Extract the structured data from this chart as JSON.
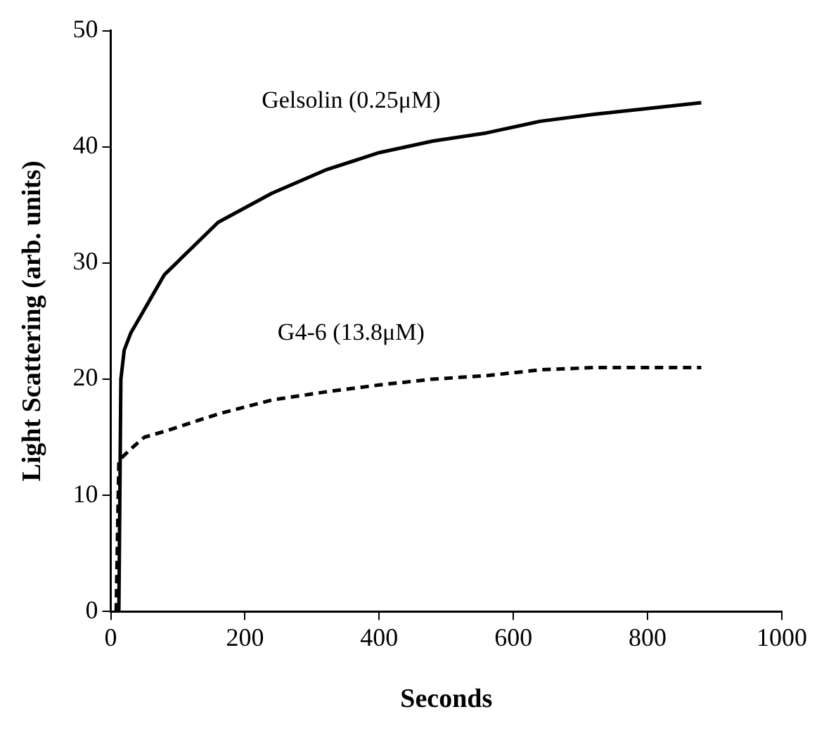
{
  "chart_data": {
    "type": "line",
    "xlabel": "Seconds",
    "ylabel": "Light Scattering (arb. units)",
    "xlim": [
      0,
      1000
    ],
    "xticks": [
      0,
      200,
      400,
      600,
      800,
      1000
    ],
    "ylim": [
      0,
      50
    ],
    "yticks": [
      0,
      10,
      20,
      30,
      40,
      50
    ],
    "grid": false,
    "legend": false,
    "marker": "none",
    "series": [
      {
        "name": "Gelsolin (0.25μM)",
        "color": "#000000",
        "line_style": "solid",
        "x": [
          12,
          15,
          20,
          30,
          45,
          60,
          80,
          160,
          240,
          320,
          400,
          480,
          560,
          640,
          720,
          800,
          880
        ],
        "values": [
          0,
          20,
          22.5,
          24,
          25.5,
          27,
          29,
          33.5,
          36,
          38,
          39.5,
          40.5,
          41.2,
          42.2,
          42.8,
          43.3,
          43.8
        ]
      },
      {
        "name": "G4-6 (13.8μM)",
        "color": "#000000",
        "line_style": "dashed",
        "x": [
          8,
          12,
          30,
          50,
          80,
          160,
          240,
          320,
          400,
          480,
          560,
          640,
          720,
          880
        ],
        "values": [
          0,
          13,
          14,
          15,
          15.5,
          17,
          18.2,
          18.9,
          19.5,
          20,
          20.3,
          20.8,
          21,
          21
        ]
      }
    ]
  }
}
